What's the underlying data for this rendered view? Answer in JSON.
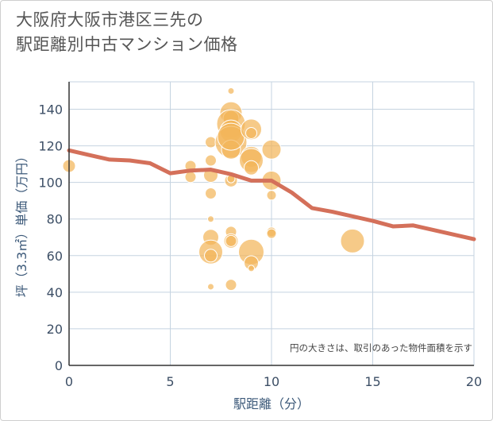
{
  "title_lines": [
    "大阪府大阪市港区三先の",
    "駅距離別中古マンション価格"
  ],
  "chart_data": {
    "type": "scatter",
    "title": "大阪府大阪市港区三先の駅距離別中古マンション価格",
    "xlabel": "駅距離（分）",
    "ylabel": "坪（3.3㎡）単価（万円）",
    "xlim": [
      0,
      20
    ],
    "ylim": [
      0,
      155
    ],
    "xticks": [
      0,
      5,
      10,
      15,
      20
    ],
    "yticks": [
      0,
      20,
      40,
      60,
      80,
      100,
      120,
      140
    ],
    "grid": true,
    "note": "円の大きさは、取引のあった物件面積を示す",
    "colors": {
      "bubble": "#f2b65a",
      "line": "#d4705a",
      "grid": "#c5d3e0"
    },
    "series": [
      {
        "type": "bubble",
        "points": [
          {
            "x": 0,
            "y": 109,
            "s": 8
          },
          {
            "x": 6,
            "y": 109,
            "s": 7
          },
          {
            "x": 6,
            "y": 103,
            "s": 7
          },
          {
            "x": 7,
            "y": 122,
            "s": 7
          },
          {
            "x": 7,
            "y": 112,
            "s": 7
          },
          {
            "x": 7,
            "y": 104,
            "s": 9
          },
          {
            "x": 7,
            "y": 94,
            "s": 7
          },
          {
            "x": 7,
            "y": 80,
            "s": 4
          },
          {
            "x": 7,
            "y": 70,
            "s": 10
          },
          {
            "x": 7,
            "y": 62,
            "s": 15
          },
          {
            "x": 7,
            "y": 60,
            "s": 8
          },
          {
            "x": 7,
            "y": 43,
            "s": 4
          },
          {
            "x": 8,
            "y": 150,
            "s": 4
          },
          {
            "x": 8,
            "y": 138,
            "s": 14
          },
          {
            "x": 8,
            "y": 135,
            "s": 10
          },
          {
            "x": 8,
            "y": 132,
            "s": 18
          },
          {
            "x": 8,
            "y": 128,
            "s": 14
          },
          {
            "x": 8,
            "y": 122,
            "s": 20
          },
          {
            "x": 8,
            "y": 118,
            "s": 12
          },
          {
            "x": 8,
            "y": 125,
            "s": 17
          },
          {
            "x": 8,
            "y": 101,
            "s": 8
          },
          {
            "x": 8,
            "y": 102,
            "s": 5
          },
          {
            "x": 8,
            "y": 73,
            "s": 7
          },
          {
            "x": 8,
            "y": 68,
            "s": 9
          },
          {
            "x": 8,
            "y": 68,
            "s": 7
          },
          {
            "x": 8,
            "y": 44,
            "s": 7
          },
          {
            "x": 9,
            "y": 129,
            "s": 13
          },
          {
            "x": 9,
            "y": 127,
            "s": 7
          },
          {
            "x": 9,
            "y": 114,
            "s": 13
          },
          {
            "x": 9,
            "y": 112,
            "s": 15
          },
          {
            "x": 9,
            "y": 108,
            "s": 9
          },
          {
            "x": 9,
            "y": 62,
            "s": 16
          },
          {
            "x": 9,
            "y": 56,
            "s": 9
          },
          {
            "x": 9,
            "y": 53,
            "s": 4
          },
          {
            "x": 10,
            "y": 118,
            "s": 12
          },
          {
            "x": 10,
            "y": 101,
            "s": 12
          },
          {
            "x": 10,
            "y": 93,
            "s": 6
          },
          {
            "x": 10,
            "y": 73,
            "s": 6
          },
          {
            "x": 10,
            "y": 72,
            "s": 6
          },
          {
            "x": 14,
            "y": 68,
            "s": 15
          }
        ]
      },
      {
        "type": "line",
        "x": [
          0,
          1,
          2,
          3,
          4,
          5,
          6,
          7,
          8,
          9,
          10,
          11,
          12,
          13,
          14,
          15,
          16,
          17,
          18,
          19,
          20
        ],
        "y": [
          117.5,
          115,
          112.5,
          112,
          110.5,
          105,
          106.5,
          107,
          104.5,
          101,
          101,
          94.5,
          86,
          84,
          81.5,
          79,
          76,
          76.5,
          74,
          71.5,
          69
        ]
      }
    ]
  }
}
